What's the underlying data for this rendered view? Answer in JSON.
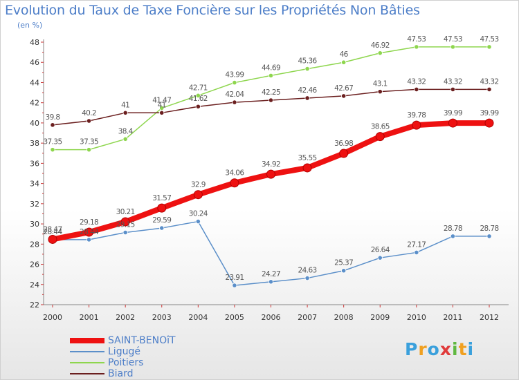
{
  "title": "Evolution du Taux de Taxe Foncière sur les Propriétés Non Bâties",
  "subtitle": "(en %)",
  "chart_data": {
    "type": "line",
    "x": [
      2000,
      2001,
      2002,
      2003,
      2004,
      2005,
      2006,
      2007,
      2008,
      2009,
      2010,
      2011,
      2012
    ],
    "ylim": [
      22,
      48
    ],
    "yticks": [
      22,
      24,
      26,
      28,
      30,
      32,
      34,
      36,
      38,
      40,
      42,
      44,
      46,
      48
    ],
    "grid": false,
    "legend_position": "bottom-left",
    "series": [
      {
        "name": "Poitiers",
        "color": "#8ed64e",
        "values": [
          37.35,
          37.35,
          38.4,
          41.47,
          42.71,
          43.99,
          44.69,
          45.36,
          46,
          46.92,
          47.53,
          47.53,
          47.53
        ],
        "labels": [
          "37.35",
          "37.35",
          "38.4",
          "41.47",
          "42.71",
          "43.99",
          "44.69",
          "45.36",
          "46",
          "46.92",
          "47.53",
          "47.53",
          "47.53"
        ]
      },
      {
        "name": "Biard",
        "color": "#6b1f1f",
        "values": [
          39.8,
          40.2,
          41,
          41,
          41.62,
          42.04,
          42.25,
          42.46,
          42.67,
          43.1,
          43.32,
          43.32,
          43.32
        ],
        "labels": [
          "39.8",
          "40.2",
          "41",
          "41",
          "41.62",
          "42.04",
          "42.25",
          "42.46",
          "42.67",
          "43.1",
          "43.32",
          "43.32",
          "43.32"
        ]
      },
      {
        "name": "Ligugé",
        "color": "#5b8fc9",
        "values": [
          28.44,
          28.44,
          29.15,
          29.59,
          30.24,
          23.91,
          24.27,
          24.63,
          25.37,
          26.64,
          27.17,
          28.78,
          28.78
        ],
        "labels": [
          "28.44",
          "28.44",
          "29.15",
          "29.59",
          "30.24",
          "23.91",
          "24.27",
          "24.63",
          "25.37",
          "26.64",
          "27.17",
          "28.78",
          "28.78"
        ]
      },
      {
        "name": "SAINT-BENOîT",
        "color": "#ee1111",
        "values": [
          28.47,
          29.18,
          30.21,
          31.57,
          32.9,
          34.06,
          34.92,
          35.55,
          36.98,
          38.65,
          39.78,
          39.99,
          39.99
        ],
        "labels": [
          "28.47",
          "29.18",
          "30.21",
          "31.57",
          "32.9",
          "34.06",
          "34.92",
          "35.55",
          "36.98",
          "38.65",
          "39.78",
          "39.99",
          "39.99"
        ]
      }
    ]
  },
  "legend": [
    {
      "name": "SAINT-BENOîT",
      "color": "#ee1111"
    },
    {
      "name": "Ligugé",
      "color": "#5b8fc9"
    },
    {
      "name": "Poitiers",
      "color": "#8ed64e"
    },
    {
      "name": "Biard",
      "color": "#6b1f1f"
    }
  ],
  "logo": {
    "text": "Proxiti",
    "letters": [
      "P",
      "r",
      "o",
      "x",
      "i",
      "t",
      "i"
    ],
    "colors": [
      "#3aa0dc",
      "#f0a020",
      "#3aa0dc",
      "#e03a3a",
      "#60b840",
      "#f0a020",
      "#3aa0dc"
    ]
  }
}
